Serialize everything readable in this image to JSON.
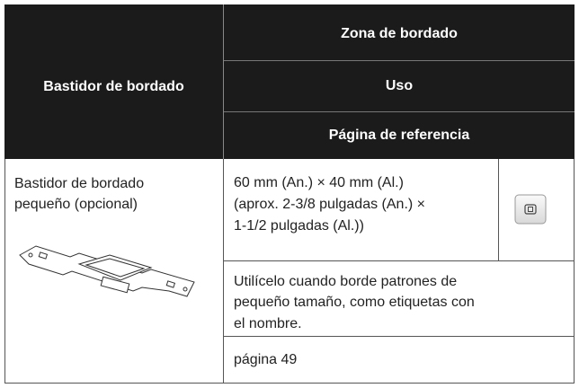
{
  "table": {
    "header": {
      "frame": "Bastidor de bordado",
      "columns": [
        "Zona de bordado",
        "Uso",
        "Página de referencia"
      ]
    },
    "row": {
      "frame": [
        "Bastidor de bordado",
        "pequeño (opcional)"
      ],
      "area": [
        "60 mm (An.) × 40 mm (Al.)",
        "(aprox. 2-3/8 pulgadas (An.) ×",
        "1-1/2 pulgadas (Al.))"
      ],
      "use": [
        "Utilícelo cuando borde patrones de",
        "pequeño tamaño, como etiquetas con",
        "el nombre."
      ],
      "page": "página 49"
    }
  }
}
